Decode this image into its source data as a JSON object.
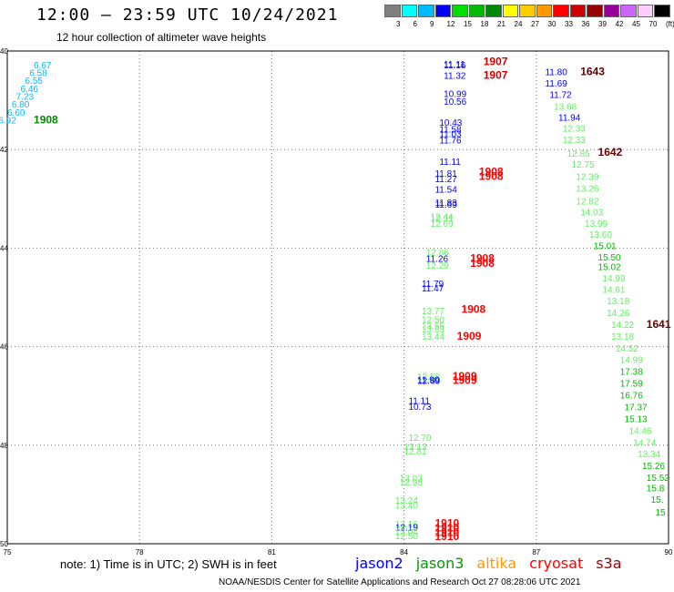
{
  "header": {
    "title": "12:00 – 23:59 UTC 10/24/2021",
    "subtitle": "12 hour collection of altimeter wave heights"
  },
  "colorbar": {
    "ticks": [
      "3",
      "6",
      "9",
      "12",
      "15",
      "18",
      "21",
      "24",
      "27",
      "30",
      "33",
      "36",
      "39",
      "42",
      "45",
      "70",
      "(ft)"
    ],
    "colors": [
      "#808080",
      "#00ffff",
      "#00bbff",
      "#0000ff",
      "#00dd00",
      "#00bb00",
      "#008800",
      "#ffff00",
      "#ffcc00",
      "#ff9900",
      "#ff0000",
      "#cc0000",
      "#990000",
      "#990099",
      "#cc66ff",
      "#ffccff",
      "#000000"
    ]
  },
  "axes": {
    "x_ticks": [
      "75",
      "78",
      "81",
      "84",
      "87",
      "90"
    ],
    "y_ticks": [
      "40",
      "42",
      "44",
      "46",
      "48",
      "50"
    ]
  },
  "map_labels": [
    {
      "lon": 75.6,
      "lat": 40.35,
      "text": "6.67",
      "color": "#00bbff"
    },
    {
      "lon": 75.5,
      "lat": 40.51,
      "text": "6.58",
      "color": "#00bbff"
    },
    {
      "lon": 75.4,
      "lat": 40.67,
      "text": "6.55",
      "color": "#00bbff"
    },
    {
      "lon": 75.3,
      "lat": 40.83,
      "text": "6.46",
      "color": "#00bbff"
    },
    {
      "lon": 75.2,
      "lat": 40.99,
      "text": "7.23",
      "color": "#00bbff"
    },
    {
      "lon": 75.1,
      "lat": 41.15,
      "text": "6.80",
      "color": "#00bbff"
    },
    {
      "lon": 75.0,
      "lat": 41.31,
      "text": "6.60",
      "color": "#00bbff"
    },
    {
      "lon": 74.8,
      "lat": 41.47,
      "text": "6.92",
      "color": "#00bbff"
    },
    {
      "lon": 75.6,
      "lat": 41.47,
      "text": "1908",
      "color": "#008800",
      "bold": true
    },
    {
      "lon": 84.9,
      "lat": 40.33,
      "text": "11.11",
      "color": "#0000ff"
    },
    {
      "lon": 84.9,
      "lat": 40.35,
      "text": "11.16",
      "color": "#0000ff"
    },
    {
      "lon": 85.8,
      "lat": 40.29,
      "text": "1907",
      "color": "#cc0000",
      "bold": true
    },
    {
      "lon": 84.9,
      "lat": 40.56,
      "text": "11.32",
      "color": "#0000ff"
    },
    {
      "lon": 85.8,
      "lat": 40.56,
      "text": "1907",
      "color": "#cc0000",
      "bold": true
    },
    {
      "lon": 87.2,
      "lat": 40.49,
      "text": "11.80",
      "color": "#0000ff"
    },
    {
      "lon": 87.2,
      "lat": 40.72,
      "text": "11.69",
      "color": "#0000ff"
    },
    {
      "lon": 88.0,
      "lat": 40.49,
      "text": "1643",
      "color": "#660000",
      "bold": true
    },
    {
      "lon": 84.9,
      "lat": 40.93,
      "text": "10.99",
      "color": "#0000ff"
    },
    {
      "lon": 84.9,
      "lat": 41.09,
      "text": "10.56",
      "color": "#0000ff"
    },
    {
      "lon": 87.3,
      "lat": 40.95,
      "text": "11.72",
      "color": "#0000ff"
    },
    {
      "lon": 87.4,
      "lat": 41.19,
      "text": "13.68",
      "color": "#66ee66"
    },
    {
      "lon": 87.5,
      "lat": 41.41,
      "text": "11.94",
      "color": "#0000ff"
    },
    {
      "lon": 84.8,
      "lat": 41.52,
      "text": "10.43",
      "color": "#0000ff"
    },
    {
      "lon": 84.8,
      "lat": 41.65,
      "text": "11.58",
      "color": "#0000ff"
    },
    {
      "lon": 84.8,
      "lat": 41.75,
      "text": "11.03",
      "color": "#0000ff"
    },
    {
      "lon": 84.8,
      "lat": 41.88,
      "text": "11.76",
      "color": "#0000ff"
    },
    {
      "lon": 87.6,
      "lat": 41.64,
      "text": "12.33",
      "color": "#66ee66"
    },
    {
      "lon": 87.6,
      "lat": 41.87,
      "text": "12.33",
      "color": "#66ee66"
    },
    {
      "lon": 87.7,
      "lat": 42.14,
      "text": "12.85",
      "color": "#66ee66"
    },
    {
      "lon": 88.4,
      "lat": 42.13,
      "text": "1642",
      "color": "#660000",
      "bold": true
    },
    {
      "lon": 87.8,
      "lat": 42.37,
      "text": "12.75",
      "color": "#66ee66"
    },
    {
      "lon": 84.8,
      "lat": 42.31,
      "text": "11.11",
      "color": "#0000ff"
    },
    {
      "lon": 84.7,
      "lat": 42.55,
      "text": "11.81",
      "color": "#0000ff"
    },
    {
      "lon": 84.7,
      "lat": 42.66,
      "text": "11.27",
      "color": "#0000ff"
    },
    {
      "lon": 85.7,
      "lat": 42.52,
      "text": "1908",
      "color": "#ff0000",
      "bold": true
    },
    {
      "lon": 85.7,
      "lat": 42.62,
      "text": "1908",
      "color": "#ff0000",
      "bold": true
    },
    {
      "lon": 84.7,
      "lat": 42.87,
      "text": "11.54",
      "color": "#0000ff"
    },
    {
      "lon": 87.9,
      "lat": 42.62,
      "text": "12.39",
      "color": "#66ee66"
    },
    {
      "lon": 87.9,
      "lat": 42.86,
      "text": "13.26",
      "color": "#66ee66"
    },
    {
      "lon": 87.9,
      "lat": 43.11,
      "text": "12.82",
      "color": "#66ee66"
    },
    {
      "lon": 84.7,
      "lat": 43.14,
      "text": "11.83",
      "color": "#0000ff"
    },
    {
      "lon": 84.7,
      "lat": 43.18,
      "text": "11.69",
      "color": "#0000ff"
    },
    {
      "lon": 88.0,
      "lat": 43.34,
      "text": "14.03",
      "color": "#66ee66"
    },
    {
      "lon": 84.6,
      "lat": 43.43,
      "text": "12.44",
      "color": "#66ee66"
    },
    {
      "lon": 84.6,
      "lat": 43.47,
      "text": "12.31",
      "color": "#66ee66"
    },
    {
      "lon": 84.6,
      "lat": 43.57,
      "text": "12.69",
      "color": "#66ee66"
    },
    {
      "lon": 88.1,
      "lat": 43.57,
      "text": "13.99",
      "color": "#66ee66"
    },
    {
      "lon": 88.2,
      "lat": 43.79,
      "text": "13.60",
      "color": "#66ee66"
    },
    {
      "lon": 88.3,
      "lat": 44.02,
      "text": "15.01",
      "color": "#00bb00"
    },
    {
      "lon": 88.4,
      "lat": 44.25,
      "text": "15.50",
      "color": "#00bb00"
    },
    {
      "lon": 84.5,
      "lat": 44.15,
      "text": "12.86",
      "color": "#66ee66"
    },
    {
      "lon": 84.5,
      "lat": 44.28,
      "text": "11.26",
      "color": "#0000ff"
    },
    {
      "lon": 84.5,
      "lat": 44.42,
      "text": "12.29",
      "color": "#66ee66"
    },
    {
      "lon": 85.5,
      "lat": 44.28,
      "text": "1908",
      "color": "#ff0000",
      "bold": true
    },
    {
      "lon": 85.5,
      "lat": 44.38,
      "text": "1908",
      "color": "#ff0000",
      "bold": true
    },
    {
      "lon": 88.4,
      "lat": 44.45,
      "text": "15.02",
      "color": "#00bb00"
    },
    {
      "lon": 88.5,
      "lat": 44.68,
      "text": "14.99",
      "color": "#66ee66"
    },
    {
      "lon": 84.4,
      "lat": 44.79,
      "text": "11.79",
      "color": "#0000ff"
    },
    {
      "lon": 84.4,
      "lat": 44.88,
      "text": "11.47",
      "color": "#0000ff"
    },
    {
      "lon": 88.5,
      "lat": 44.91,
      "text": "14.61",
      "color": "#66ee66"
    },
    {
      "lon": 88.6,
      "lat": 45.14,
      "text": "13.18",
      "color": "#66ee66"
    },
    {
      "lon": 88.6,
      "lat": 45.38,
      "text": "14.26",
      "color": "#66ee66"
    },
    {
      "lon": 84.4,
      "lat": 45.34,
      "text": "13.77",
      "color": "#66ee66"
    },
    {
      "lon": 85.3,
      "lat": 45.31,
      "text": "1908",
      "color": "#ff0000",
      "bold": true
    },
    {
      "lon": 88.7,
      "lat": 45.62,
      "text": "14.22",
      "color": "#66ee66"
    },
    {
      "lon": 89.5,
      "lat": 45.62,
      "text": "1641",
      "color": "#660000",
      "bold": true
    },
    {
      "lon": 84.4,
      "lat": 45.52,
      "text": "12.50",
      "color": "#66ee66"
    },
    {
      "lon": 84.4,
      "lat": 45.65,
      "text": "13.55",
      "color": "#66ee66"
    },
    {
      "lon": 84.4,
      "lat": 45.71,
      "text": "13.63",
      "color": "#66ee66"
    },
    {
      "lon": 84.4,
      "lat": 45.86,
      "text": "13.44",
      "color": "#66ee66"
    },
    {
      "lon": 85.2,
      "lat": 45.86,
      "text": "1909",
      "color": "#ff0000",
      "bold": true
    },
    {
      "lon": 88.7,
      "lat": 45.86,
      "text": "13.18",
      "color": "#66ee66"
    },
    {
      "lon": 88.8,
      "lat": 46.1,
      "text": "14.52",
      "color": "#66ee66"
    },
    {
      "lon": 88.9,
      "lat": 46.33,
      "text": "14.99",
      "color": "#66ee66"
    },
    {
      "lon": 88.9,
      "lat": 46.57,
      "text": "17.38",
      "color": "#00bb00"
    },
    {
      "lon": 88.9,
      "lat": 46.81,
      "text": "17.59",
      "color": "#00bb00"
    },
    {
      "lon": 88.9,
      "lat": 47.05,
      "text": "16.76",
      "color": "#00bb00"
    },
    {
      "lon": 89.0,
      "lat": 47.29,
      "text": "17.37",
      "color": "#00bb00"
    },
    {
      "lon": 89.0,
      "lat": 47.53,
      "text": "15.13",
      "color": "#00bb00"
    },
    {
      "lon": 89.1,
      "lat": 47.77,
      "text": "14.46",
      "color": "#66ee66"
    },
    {
      "lon": 89.2,
      "lat": 48.01,
      "text": "14.74",
      "color": "#66ee66"
    },
    {
      "lon": 89.3,
      "lat": 48.24,
      "text": "13.34",
      "color": "#66ee66"
    },
    {
      "lon": 89.4,
      "lat": 48.48,
      "text": "15.26",
      "color": "#00bb00"
    },
    {
      "lon": 89.5,
      "lat": 48.72,
      "text": "15.52",
      "color": "#00bb00"
    },
    {
      "lon": 89.5,
      "lat": 48.94,
      "text": "15.8",
      "color": "#00bb00"
    },
    {
      "lon": 89.6,
      "lat": 49.17,
      "text": "15.",
      "color": "#00bb00"
    },
    {
      "lon": 89.7,
      "lat": 49.43,
      "text": "15",
      "color": "#00bb00"
    },
    {
      "lon": 84.3,
      "lat": 46.67,
      "text": "12.58",
      "color": "#66ee66"
    },
    {
      "lon": 84.3,
      "lat": 46.74,
      "text": "11.90",
      "color": "#0000ff"
    },
    {
      "lon": 84.3,
      "lat": 46.76,
      "text": "12.69",
      "color": "#0000ff"
    },
    {
      "lon": 85.1,
      "lat": 46.67,
      "text": "1909",
      "color": "#ff0000",
      "bold": true
    },
    {
      "lon": 85.1,
      "lat": 46.76,
      "text": "1909",
      "color": "#ff0000",
      "bold": true
    },
    {
      "lon": 84.1,
      "lat": 47.16,
      "text": "11.11",
      "color": "#0000ff"
    },
    {
      "lon": 84.1,
      "lat": 47.28,
      "text": "10.73",
      "color": "#0000ff"
    },
    {
      "lon": 84.1,
      "lat": 47.91,
      "text": "12.70",
      "color": "#66ee66"
    },
    {
      "lon": 84.0,
      "lat": 48.1,
      "text": "13.13",
      "color": "#66ee66"
    },
    {
      "lon": 84.0,
      "lat": 48.19,
      "text": "12.81",
      "color": "#66ee66"
    },
    {
      "lon": 83.9,
      "lat": 48.73,
      "text": "13.03",
      "color": "#66ee66"
    },
    {
      "lon": 83.9,
      "lat": 48.82,
      "text": "12.98",
      "color": "#66ee66"
    },
    {
      "lon": 83.8,
      "lat": 49.19,
      "text": "13.24",
      "color": "#66ee66"
    },
    {
      "lon": 83.8,
      "lat": 49.29,
      "text": "13.40",
      "color": "#66ee66"
    },
    {
      "lon": 83.8,
      "lat": 49.67,
      "text": "12.16",
      "color": "#66ee66"
    },
    {
      "lon": 83.8,
      "lat": 49.73,
      "text": "12.19",
      "color": "#0000ff"
    },
    {
      "lon": 83.8,
      "lat": 49.82,
      "text": "13.04",
      "color": "#66ee66"
    },
    {
      "lon": 83.8,
      "lat": 49.91,
      "text": "12.50",
      "color": "#66ee66"
    },
    {
      "lon": 84.7,
      "lat": 49.66,
      "text": "1910",
      "color": "#ff0000",
      "bold": true
    },
    {
      "lon": 84.7,
      "lat": 49.75,
      "text": "1910",
      "color": "#ff0000",
      "bold": true
    },
    {
      "lon": 84.7,
      "lat": 49.84,
      "text": "1910",
      "color": "#ff0000",
      "bold": true
    },
    {
      "lon": 84.7,
      "lat": 49.93,
      "text": "1910",
      "color": "#ff0000",
      "bold": true
    }
  ],
  "footer": {
    "note": "note:  1) Time is in UTC; 2) SWH is in feet",
    "legend": [
      {
        "name": "jason2",
        "color": "#0000ff"
      },
      {
        "name": "jason3",
        "color": "#009900"
      },
      {
        "name": "altika",
        "color": "#ff9900"
      },
      {
        "name": "cryosat",
        "color": "#ff0000"
      },
      {
        "name": "s3a",
        "color": "#990000"
      }
    ],
    "credit": "NOAA/NESDIS Center for Satellite Applications and Research     Oct 27 08:28:06 UTC 2021"
  }
}
